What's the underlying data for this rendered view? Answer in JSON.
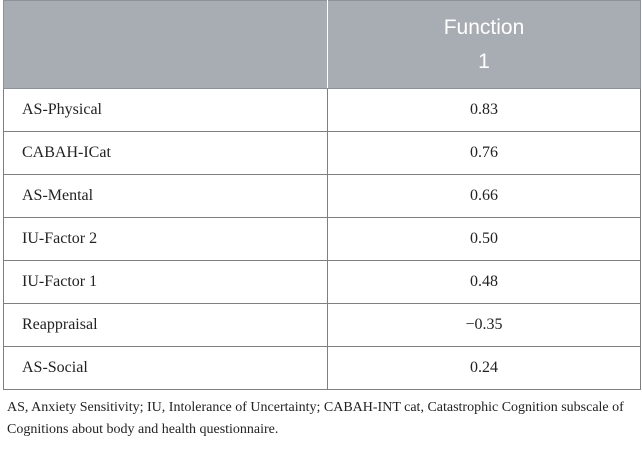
{
  "table": {
    "header": {
      "col1": "",
      "col2_line1": "Function",
      "col2_line2": "1"
    },
    "rows": [
      {
        "variable": "AS-Physical",
        "value": "0.83"
      },
      {
        "variable": "CABAH-ICat",
        "value": "0.76"
      },
      {
        "variable": "AS-Mental",
        "value": "0.66"
      },
      {
        "variable": "IU-Factor 2",
        "value": "0.50"
      },
      {
        "variable": "IU-Factor 1",
        "value": "0.48"
      },
      {
        "variable": "Reappraisal",
        "value": "−0.35"
      },
      {
        "variable": "AS-Social",
        "value": "0.24"
      }
    ],
    "colors": {
      "header_background": "#a8adb3",
      "header_text": "#ffffff",
      "border": "#7f7f7f"
    }
  },
  "footnote": "AS, Anxiety Sensitivity; IU, Intolerance of Uncertainty; CABAH-INT cat, Catastrophic Cognition subscale of Cognitions about body and health questionnaire."
}
